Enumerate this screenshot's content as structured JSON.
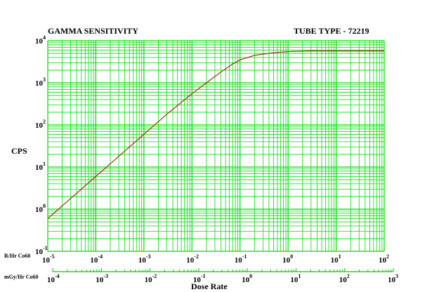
{
  "chart_data": {
    "type": "line",
    "title": "GAMMA SENSITIVITY",
    "subtitle": "TUBE TYPE - 72219",
    "ylabel": "CPS",
    "xlabel": "Dose Rate",
    "x_scale": "log",
    "y_scale": "log",
    "grid": true,
    "xlim": [
      1e-05,
      100
    ],
    "ylim": [
      0.1,
      10000
    ],
    "x_axis_label": "R/Hr Co60",
    "x_ticks": [
      {
        "base": "10",
        "exp": "-5"
      },
      {
        "base": "10",
        "exp": "-4"
      },
      {
        "base": "10",
        "exp": "-3"
      },
      {
        "base": "10",
        "exp": "-2"
      },
      {
        "base": "10",
        "exp": "-1"
      },
      {
        "base": "10",
        "exp": "0"
      },
      {
        "base": "10",
        "exp": "1"
      },
      {
        "base": "10",
        "exp": "2"
      }
    ],
    "x2_axis_label": "mGy/Hr Co60",
    "x2_ticks": [
      {
        "base": "10",
        "exp": "-4"
      },
      {
        "base": "10",
        "exp": "-3"
      },
      {
        "base": "10",
        "exp": "-2"
      },
      {
        "base": "10",
        "exp": "-1"
      },
      {
        "base": "10",
        "exp": "0"
      },
      {
        "base": "10",
        "exp": "1"
      },
      {
        "base": "10",
        "exp": "2"
      },
      {
        "base": "10",
        "exp": "3"
      }
    ],
    "y_ticks": [
      {
        "base": "10",
        "exp": "-1"
      },
      {
        "base": "10",
        "exp": "0"
      },
      {
        "base": "10",
        "exp": "1"
      },
      {
        "base": "10",
        "exp": "2"
      },
      {
        "base": "10",
        "exp": "3"
      },
      {
        "base": "10",
        "exp": "4"
      }
    ],
    "series": [
      {
        "color": "#993300",
        "x": [
          1e-05,
          3e-05,
          0.0001,
          0.0003,
          0.001,
          0.003,
          0.01,
          0.02,
          0.04,
          0.07,
          0.1,
          0.2,
          0.5,
          1,
          3,
          10,
          100
        ],
        "y": [
          0.6,
          1.8,
          6,
          18,
          60,
          180,
          550,
          1000,
          1800,
          2800,
          3500,
          4500,
          5200,
          5500,
          5700,
          5700,
          5700
        ]
      }
    ],
    "colors": {
      "grid": "#00dd00",
      "curve": "#993300",
      "bottom_axis": "#00cc00"
    }
  }
}
